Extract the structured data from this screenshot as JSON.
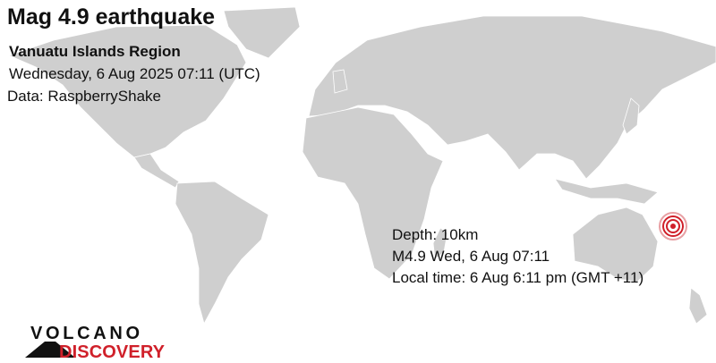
{
  "header": {
    "title": "Mag 4.9 earthquake",
    "region": "Vanuatu Islands Region",
    "datetime": "Wednesday,  6 Aug 2025 07:11 (UTC)",
    "source": "Data: RaspberryShake"
  },
  "event_info": {
    "depth": "Depth: 10km",
    "summary": "M4.9 Wed,  6 Aug 07:11",
    "local_time": "Local time: 6 Aug 6:11 pm (GMT +11)"
  },
  "map": {
    "land_color": "#cfcfcf",
    "ocean_color": "#ffffff",
    "marker": {
      "icon": "epicenter-rings-icon",
      "color": "#d0202a"
    }
  },
  "logo": {
    "line1": "VOLCANO",
    "line2": "DISCOVERY",
    "line1_color": "#111111",
    "line2_color": "#d0202a"
  }
}
